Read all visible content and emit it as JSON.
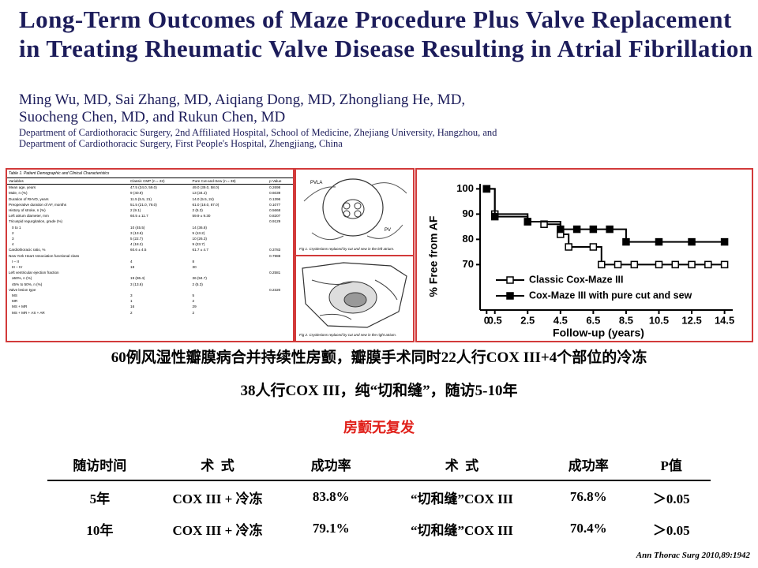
{
  "header": {
    "title": "Long-Term Outcomes of Maze Procedure Plus Valve Replacement in Treating Rheumatic Valve Disease Resulting in Atrial Fibrillation",
    "authors": [
      "Ming Wu, MD, Sai Zhang, MD, Aiqiang Dong, MD, Zhongliang He, MD,",
      "Suocheng Chen, MD, and Rukun Chen, MD"
    ],
    "departments": [
      "Department of Cardiothoracic Surgery, 2nd Affiliated Hospital, School of Medicine, Zhejiang University, Hangzhou, and",
      "Department of Cardiothoracic Surgery, First People's Hospital, Zhengjiang, China"
    ]
  },
  "table_image": {
    "caption": "Table 1. Patient Demographic and Clinical Characteristics",
    "columns": [
      "Variables",
      "Classic CMP (n = 22)",
      "Pure Cut-and-Sew (n = 38)",
      "p Value"
    ],
    "rows": [
      [
        "Mean age, years",
        "47.5 (34.0, 59.0)",
        "49.0 (39.0, 58.0)",
        "0.2698"
      ],
      [
        "Male, n (%)",
        "9 (40.9)",
        "13 (34.2)",
        "0.6039"
      ],
      [
        "Duration of RHVD, years",
        "11.5 (5.5, 21)",
        "14.0 (5.5, 24)",
        "0.1396"
      ],
      [
        "Preoperative duration of AF, months",
        "51.5 (21.0, 78.0)",
        "61.0 (18.0, 87.0)",
        "0.1077"
      ],
      [
        "History of stroke, n (%)",
        "2 (9.1)",
        "2 (5.3)",
        "0.5668"
      ],
      [
        "Left atrium diameter, mm",
        "60.5 ± 11.7",
        "59.9 ± 9.30",
        "0.8207"
      ],
      [
        "Tricuspid regurgitation, grade (%)",
        null,
        null,
        "0.9129"
      ],
      [
        "0 to 1",
        "10 (45.5)",
        "14 (36.8)",
        null
      ],
      [
        "2",
        "3 (13.6)",
        "5 (13.2)",
        null
      ],
      [
        "3",
        "5 (22.7)",
        "10 (26.3)",
        null
      ],
      [
        "4",
        "4 (18.2)",
        "9 (23.7)",
        null
      ],
      [
        "Cardiothoracic ratio, %",
        "60.6 ± 4.5",
        "61.7 ± 4.7",
        "0.3783"
      ],
      [
        "New York Heart Association functional class",
        null,
        null,
        "0.7988"
      ],
      [
        "I – II",
        "4",
        "8",
        null
      ],
      [
        "III – IV",
        "18",
        "30",
        null
      ],
      [
        "Left ventricular ejection fraction",
        null,
        null,
        "0.2581"
      ],
      [
        "≥50%, n (%)",
        "19 (86.4)",
        "36 (94.7)",
        null
      ],
      [
        "45% to 50%, n (%)",
        "3 (13.6)",
        "2 (5.3)",
        null
      ],
      [
        "Valve lesion type",
        null,
        null,
        "0.2320"
      ],
      [
        "MS",
        "3",
        "5",
        null
      ],
      [
        "MR",
        "1",
        "2",
        null
      ],
      [
        "MS + MR",
        "16",
        "29",
        null
      ],
      [
        "MS + MR + AS + AR",
        "2",
        "2",
        null
      ]
    ]
  },
  "figures": {
    "fig1": {
      "labels": [
        "PVLA",
        "PV"
      ],
      "caption": "Fig 1. Cryolesions replaced by cut and sew in the left atrium."
    },
    "fig2": {
      "caption": "Fig 2. Cryolesions replaced by cut and sew in the right atrium."
    }
  },
  "chart_data": {
    "type": "step-line",
    "y_label": "% Free from AF",
    "x_label": "Follow-up (years)",
    "xlim": [
      -0.4,
      15
    ],
    "ylim": [
      52,
      102
    ],
    "xticks": [
      0,
      0.5,
      2.5,
      4.5,
      6.5,
      8.5,
      10.5,
      12.5,
      14.5
    ],
    "yticks": [
      70,
      80,
      90,
      100
    ],
    "legend": "center-right",
    "series": [
      {
        "name": "Classic Cox-Maze III",
        "color": "#000000",
        "marker": "open-square",
        "x": [
          0,
          0.5,
          2.5,
          3.5,
          4.5,
          5,
          6.5,
          7,
          8,
          9,
          10.5,
          11.5,
          12.5,
          13.5,
          14.5
        ],
        "values": [
          100,
          90,
          87,
          86,
          82,
          77,
          77,
          70,
          70,
          70,
          70,
          70,
          70,
          70,
          70
        ]
      },
      {
        "name": "Cox-Maze III with pure cut and sew",
        "color": "#000000",
        "marker": "filled-square",
        "x": [
          0,
          0.5,
          2.5,
          4.5,
          5.5,
          6.5,
          7.5,
          8.5,
          10.5,
          12.5,
          14.5
        ],
        "values": [
          100,
          89,
          87,
          84,
          84,
          84,
          84,
          79,
          79,
          79,
          79
        ]
      }
    ]
  },
  "summary": [
    "60例风湿性瓣膜病合并持续性房颤，瓣膜手术同时22人行COX III+4个部位的冷冻",
    "38人行COX III，纯“切和缝”，随访5-10年"
  ],
  "highlight": "房颤无复发",
  "results_table": {
    "header": [
      "随访时间",
      "术  式",
      "成功率",
      "术  式",
      "成功率",
      "P值"
    ],
    "rows": [
      [
        "5年",
        "COX III + 冷冻",
        "83.8%",
        "“切和缝”COX III",
        "76.8%",
        "＞0.05"
      ],
      [
        "10年",
        "COX III + 冷冻",
        "79.1%",
        "“切和缝”COX III",
        "70.4%",
        "＞0.05"
      ]
    ]
  },
  "citation": "Ann Thorac Surg 2010,89:1942"
}
